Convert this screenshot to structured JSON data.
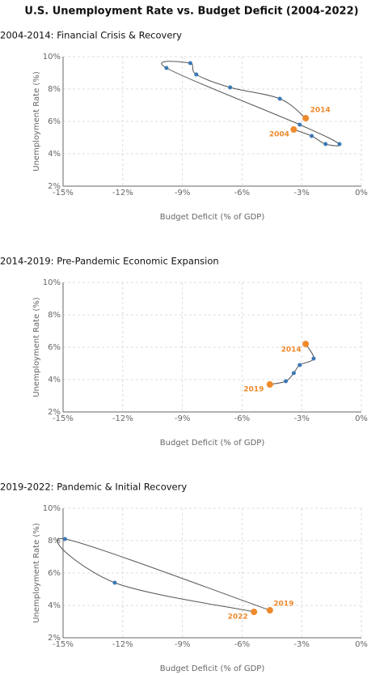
{
  "title": "U.S. Unemployment Rate vs. Budget Deficit (2004-2022)",
  "chart_data": [
    {
      "type": "scatter",
      "title": "2004-2014: Financial Crisis & Recovery",
      "x_label": "Budget Deficit (% of GDP)",
      "y_label": "Unemployment Rate (%)",
      "x": [
        -3.4,
        -2.5,
        -1.8,
        -1.1,
        -3.1,
        -9.8,
        -8.6,
        -8.3,
        -6.6,
        -4.1,
        -2.8
      ],
      "values": [
        5.5,
        5.1,
        4.6,
        4.6,
        5.8,
        9.3,
        9.6,
        8.9,
        8.1,
        7.4,
        6.2
      ],
      "point_labels": [
        "2004",
        null,
        null,
        null,
        null,
        null,
        null,
        null,
        null,
        null,
        "2014"
      ],
      "color": "#3a78b5",
      "highlight_color": "#ee8a2c",
      "line_color": "#555555",
      "grid": true,
      "xlim": [
        -15,
        0
      ],
      "ylim": [
        2,
        10
      ],
      "xticks": [
        {
          "value": -15,
          "label": "-15%"
        },
        {
          "value": -12,
          "label": "-12%"
        },
        {
          "value": -9,
          "label": "-9%"
        },
        {
          "value": -6,
          "label": "-6%"
        },
        {
          "value": -3,
          "label": "-3%"
        },
        {
          "value": 0,
          "label": "0%"
        }
      ],
      "yticks": [
        {
          "value": 2,
          "label": "2%"
        },
        {
          "value": 4,
          "label": "4%"
        },
        {
          "value": 6,
          "label": "6%"
        },
        {
          "value": 8,
          "label": "8%"
        },
        {
          "value": 10,
          "label": "10%"
        }
      ]
    },
    {
      "type": "scatter",
      "title": "2014-2019: Pre-Pandemic Economic Expansion",
      "x_label": "Budget Deficit (% of GDP)",
      "y_label": "Unemployment Rate (%)",
      "x": [
        -2.8,
        -2.4,
        -3.1,
        -3.4,
        -3.8,
        -4.6
      ],
      "values": [
        6.2,
        5.3,
        4.9,
        4.4,
        3.9,
        3.7
      ],
      "point_labels": [
        "2014",
        null,
        null,
        null,
        null,
        "2019"
      ],
      "color": "#3a78b5",
      "highlight_color": "#ee8a2c",
      "line_color": "#555555",
      "grid": true,
      "xlim": [
        -15,
        0
      ],
      "ylim": [
        2,
        10
      ],
      "xticks": [
        {
          "value": -15,
          "label": "-15%"
        },
        {
          "value": -12,
          "label": "-12%"
        },
        {
          "value": -9,
          "label": "-9%"
        },
        {
          "value": -6,
          "label": "-6%"
        },
        {
          "value": -3,
          "label": "-3%"
        },
        {
          "value": 0,
          "label": "0%"
        }
      ],
      "yticks": [
        {
          "value": 2,
          "label": "2%"
        },
        {
          "value": 4,
          "label": "4%"
        },
        {
          "value": 6,
          "label": "6%"
        },
        {
          "value": 8,
          "label": "8%"
        },
        {
          "value": 10,
          "label": "10%"
        }
      ]
    },
    {
      "type": "scatter",
      "title": "2019-2022: Pandemic & Initial Recovery",
      "x_label": "Budget Deficit (% of GDP)",
      "y_label": "Unemployment Rate (%)",
      "x": [
        -4.6,
        -14.9,
        -12.4,
        -5.4
      ],
      "values": [
        3.7,
        8.1,
        5.4,
        3.6
      ],
      "point_labels": [
        "2019",
        null,
        null,
        "2022"
      ],
      "color": "#3a78b5",
      "highlight_color": "#ee8a2c",
      "line_color": "#555555",
      "grid": true,
      "xlim": [
        -15,
        0
      ],
      "ylim": [
        2,
        10
      ],
      "xticks": [
        {
          "value": -15,
          "label": "-15%"
        },
        {
          "value": -12,
          "label": "-12%"
        },
        {
          "value": -9,
          "label": "-9%"
        },
        {
          "value": -6,
          "label": "-6%"
        },
        {
          "value": -3,
          "label": "-3%"
        },
        {
          "value": 0,
          "label": "0%"
        }
      ],
      "yticks": [
        {
          "value": 2,
          "label": "2%"
        },
        {
          "value": 4,
          "label": "4%"
        },
        {
          "value": 6,
          "label": "6%"
        },
        {
          "value": 8,
          "label": "8%"
        },
        {
          "value": 10,
          "label": "10%"
        }
      ]
    }
  ]
}
